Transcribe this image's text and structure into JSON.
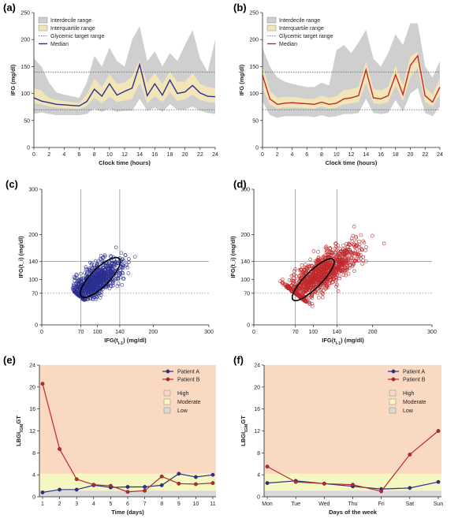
{
  "colors": {
    "patient_a": "#2b2f8f",
    "patient_b": "#c0282b",
    "interdecile": "#cfcfcf",
    "interquartile": "#f2e6b8",
    "high_zone": "#fad9c3",
    "moderate_zone": "#f4f7c2",
    "low_zone": "#d9d9d9"
  },
  "chart_data": [
    {
      "id": "a",
      "panel_label": "(a)",
      "type": "area",
      "xlabel": "Clock time (hours)",
      "ylabel": "IFG (mg/dl)",
      "xlim": [
        0,
        24
      ],
      "ylim": [
        0,
        250
      ],
      "xticks": [
        0,
        2,
        4,
        6,
        8,
        10,
        12,
        14,
        16,
        18,
        20,
        22,
        24
      ],
      "yticks": [
        0,
        50,
        100,
        150,
        200,
        250
      ],
      "target_range": [
        70,
        140
      ],
      "legend": [
        "Interdecile range",
        "Interquartile range",
        "Glycemic target range",
        "Median"
      ],
      "legend_position": "top-left",
      "x": [
        0,
        1,
        2,
        3,
        4,
        5,
        6,
        7,
        8,
        9,
        10,
        11,
        12,
        13,
        14,
        15,
        16,
        17,
        18,
        19,
        20,
        21,
        22,
        23,
        24
      ],
      "median": [
        92,
        86,
        83,
        80,
        79,
        78,
        77,
        85,
        108,
        95,
        118,
        97,
        104,
        110,
        154,
        96,
        118,
        97,
        125,
        100,
        103,
        115,
        101,
        95,
        94
      ],
      "q1": [
        82,
        80,
        76,
        74,
        73,
        72,
        71,
        77,
        92,
        82,
        94,
        84,
        87,
        90,
        120,
        82,
        95,
        84,
        102,
        86,
        90,
        98,
        88,
        84,
        83
      ],
      "q3": [
        110,
        105,
        92,
        88,
        86,
        84,
        82,
        98,
        128,
        112,
        136,
        118,
        120,
        132,
        162,
        120,
        138,
        118,
        140,
        122,
        122,
        138,
        118,
        112,
        110
      ],
      "p10": [
        62,
        65,
        62,
        60,
        60,
        60,
        60,
        62,
        72,
        66,
        72,
        66,
        68,
        68,
        90,
        68,
        74,
        66,
        80,
        70,
        70,
        76,
        68,
        64,
        62
      ],
      "p90": [
        165,
        150,
        120,
        102,
        98,
        95,
        92,
        120,
        170,
        150,
        185,
        160,
        150,
        200,
        225,
        160,
        178,
        150,
        175,
        160,
        190,
        218,
        165,
        140,
        200
      ]
    },
    {
      "id": "b",
      "panel_label": "(b)",
      "type": "area",
      "xlabel": "Clock time (hours)",
      "ylabel": "IFG (mg/dl)",
      "xlim": [
        0,
        24
      ],
      "ylim": [
        0,
        250
      ],
      "xticks": [
        0,
        2,
        4,
        6,
        8,
        10,
        12,
        14,
        16,
        18,
        20,
        22,
        24
      ],
      "yticks": [
        0,
        50,
        100,
        150,
        200,
        250
      ],
      "target_range": [
        70,
        140
      ],
      "legend": [
        "Interdecile range",
        "Interquartile range",
        "Glycemic target range",
        "Median"
      ],
      "legend_position": "top-left",
      "x": [
        0,
        1,
        2,
        3,
        4,
        5,
        6,
        7,
        8,
        9,
        10,
        11,
        12,
        13,
        14,
        15,
        16,
        17,
        18,
        19,
        20,
        21,
        22,
        23,
        24
      ],
      "median": [
        134,
        90,
        80,
        82,
        83,
        82,
        81,
        80,
        84,
        80,
        82,
        90,
        92,
        96,
        144,
        92,
        90,
        96,
        135,
        98,
        152,
        170,
        96,
        84,
        112
      ],
      "q1": [
        110,
        80,
        72,
        74,
        74,
        74,
        73,
        72,
        76,
        72,
        74,
        80,
        82,
        84,
        120,
        82,
        80,
        84,
        115,
        86,
        130,
        148,
        84,
        76,
        98
      ],
      "q3": [
        152,
        105,
        92,
        94,
        94,
        92,
        90,
        90,
        96,
        92,
        95,
        106,
        108,
        112,
        160,
        108,
        106,
        112,
        152,
        116,
        168,
        178,
        112,
        98,
        128
      ],
      "p10": [
        85,
        60,
        55,
        58,
        58,
        58,
        58,
        56,
        60,
        56,
        58,
        62,
        62,
        64,
        90,
        64,
        62,
        64,
        88,
        66,
        100,
        110,
        64,
        58,
        76
      ],
      "p90": [
        185,
        150,
        130,
        122,
        118,
        115,
        112,
        112,
        120,
        115,
        180,
        190,
        175,
        195,
        218,
        165,
        150,
        175,
        210,
        190,
        230,
        230,
        150,
        130,
        160
      ]
    },
    {
      "id": "c",
      "panel_label": "(c)",
      "type": "scatter",
      "xlabel": "IFG(t_{i-1}) (mg/dl)",
      "ylabel": "IFG(t_i) (mg/dl)",
      "xlim": [
        0,
        300
      ],
      "ylim": [
        0,
        300
      ],
      "xticks": [
        0,
        70,
        100,
        140,
        200,
        300
      ],
      "yticks": [
        0,
        70,
        100,
        140,
        200,
        300
      ],
      "target_range": [
        70,
        140
      ],
      "cloud": {
        "center": [
          95,
          95
        ],
        "sd_major": 32,
        "sd_minor": 14,
        "angle_deg": 45,
        "n": 900,
        "x_min": 55,
        "x_max": 225,
        "y_min": 55,
        "y_max": 225
      },
      "ellipse": {
        "center": [
          105,
          105
        ],
        "semi_major": 48,
        "semi_minor": 20,
        "angle_deg": 45
      }
    },
    {
      "id": "d",
      "panel_label": "(d)",
      "type": "scatter",
      "xlabel": "IFG(t_{i-1}) (mg/dl)",
      "ylabel": "IFG(t_i) (mg/dl)",
      "xlim": [
        0,
        300
      ],
      "ylim": [
        0,
        300
      ],
      "xticks": [
        0,
        70,
        100,
        140,
        200,
        300
      ],
      "yticks": [
        0,
        70,
        100,
        140,
        200,
        300
      ],
      "target_range": [
        70,
        140
      ],
      "cloud": {
        "center": [
          110,
          110
        ],
        "sd_major": 45,
        "sd_minor": 15,
        "angle_deg": 45,
        "n": 1100,
        "x_min": 40,
        "x_max": 255,
        "y_min": 40,
        "y_max": 255
      },
      "ellipse": {
        "center": [
          100,
          100
        ],
        "semi_major": 48,
        "semi_minor": 18,
        "angle_deg": 45
      }
    },
    {
      "id": "e",
      "panel_label": "(e)",
      "type": "line",
      "xlabel": "Time (days)",
      "ylabel": "LBGI_{IGM}GT",
      "xlim": [
        1,
        11
      ],
      "ylim": [
        0,
        24
      ],
      "categories": [
        "1",
        "2",
        "3",
        "4",
        "5",
        "6",
        "7",
        "8",
        "9",
        "10",
        "11"
      ],
      "yticks": [
        0,
        4,
        8,
        12,
        16,
        20,
        24
      ],
      "zones": {
        "low": [
          0,
          1.1
        ],
        "moderate": [
          1.1,
          4.2
        ],
        "high": [
          4.2,
          24
        ]
      },
      "legend": [
        "Patient A",
        "Patient B"
      ],
      "zone_legend": [
        "High",
        "Moderate",
        "Low"
      ],
      "legend_position": "top-right",
      "series": [
        {
          "name": "Patient A",
          "values": [
            0.8,
            1.3,
            1.3,
            2.1,
            1.7,
            1.8,
            1.8,
            2.1,
            4.2,
            3.6,
            4.0
          ]
        },
        {
          "name": "Patient B",
          "values": [
            20.6,
            8.7,
            3.2,
            2.2,
            2.0,
            0.9,
            1.1,
            3.7,
            2.4,
            2.3,
            2.5
          ]
        }
      ]
    },
    {
      "id": "f",
      "panel_label": "(f)",
      "type": "line",
      "xlabel": "Days of the week",
      "ylabel": "LBGI_{IGM}GT",
      "ylim": [
        0,
        24
      ],
      "categories": [
        "Mon",
        "Tue",
        "Wed",
        "Thu",
        "Fri",
        "Sat",
        "Sun"
      ],
      "yticks": [
        0,
        4,
        8,
        12,
        16,
        20,
        24
      ],
      "zones": {
        "low": [
          0,
          1.1
        ],
        "moderate": [
          1.1,
          4.2
        ],
        "high": [
          4.2,
          24
        ]
      },
      "legend": [
        "Patient A",
        "Patient B"
      ],
      "zone_legend": [
        "High",
        "Moderate",
        "Low"
      ],
      "legend_position": "top-right",
      "series": [
        {
          "name": "Patient A",
          "values": [
            2.5,
            2.9,
            2.4,
            1.9,
            1.4,
            1.6,
            2.7
          ]
        },
        {
          "name": "Patient B",
          "values": [
            5.5,
            2.7,
            2.4,
            2.2,
            1.0,
            7.7,
            12.0
          ]
        }
      ]
    }
  ]
}
